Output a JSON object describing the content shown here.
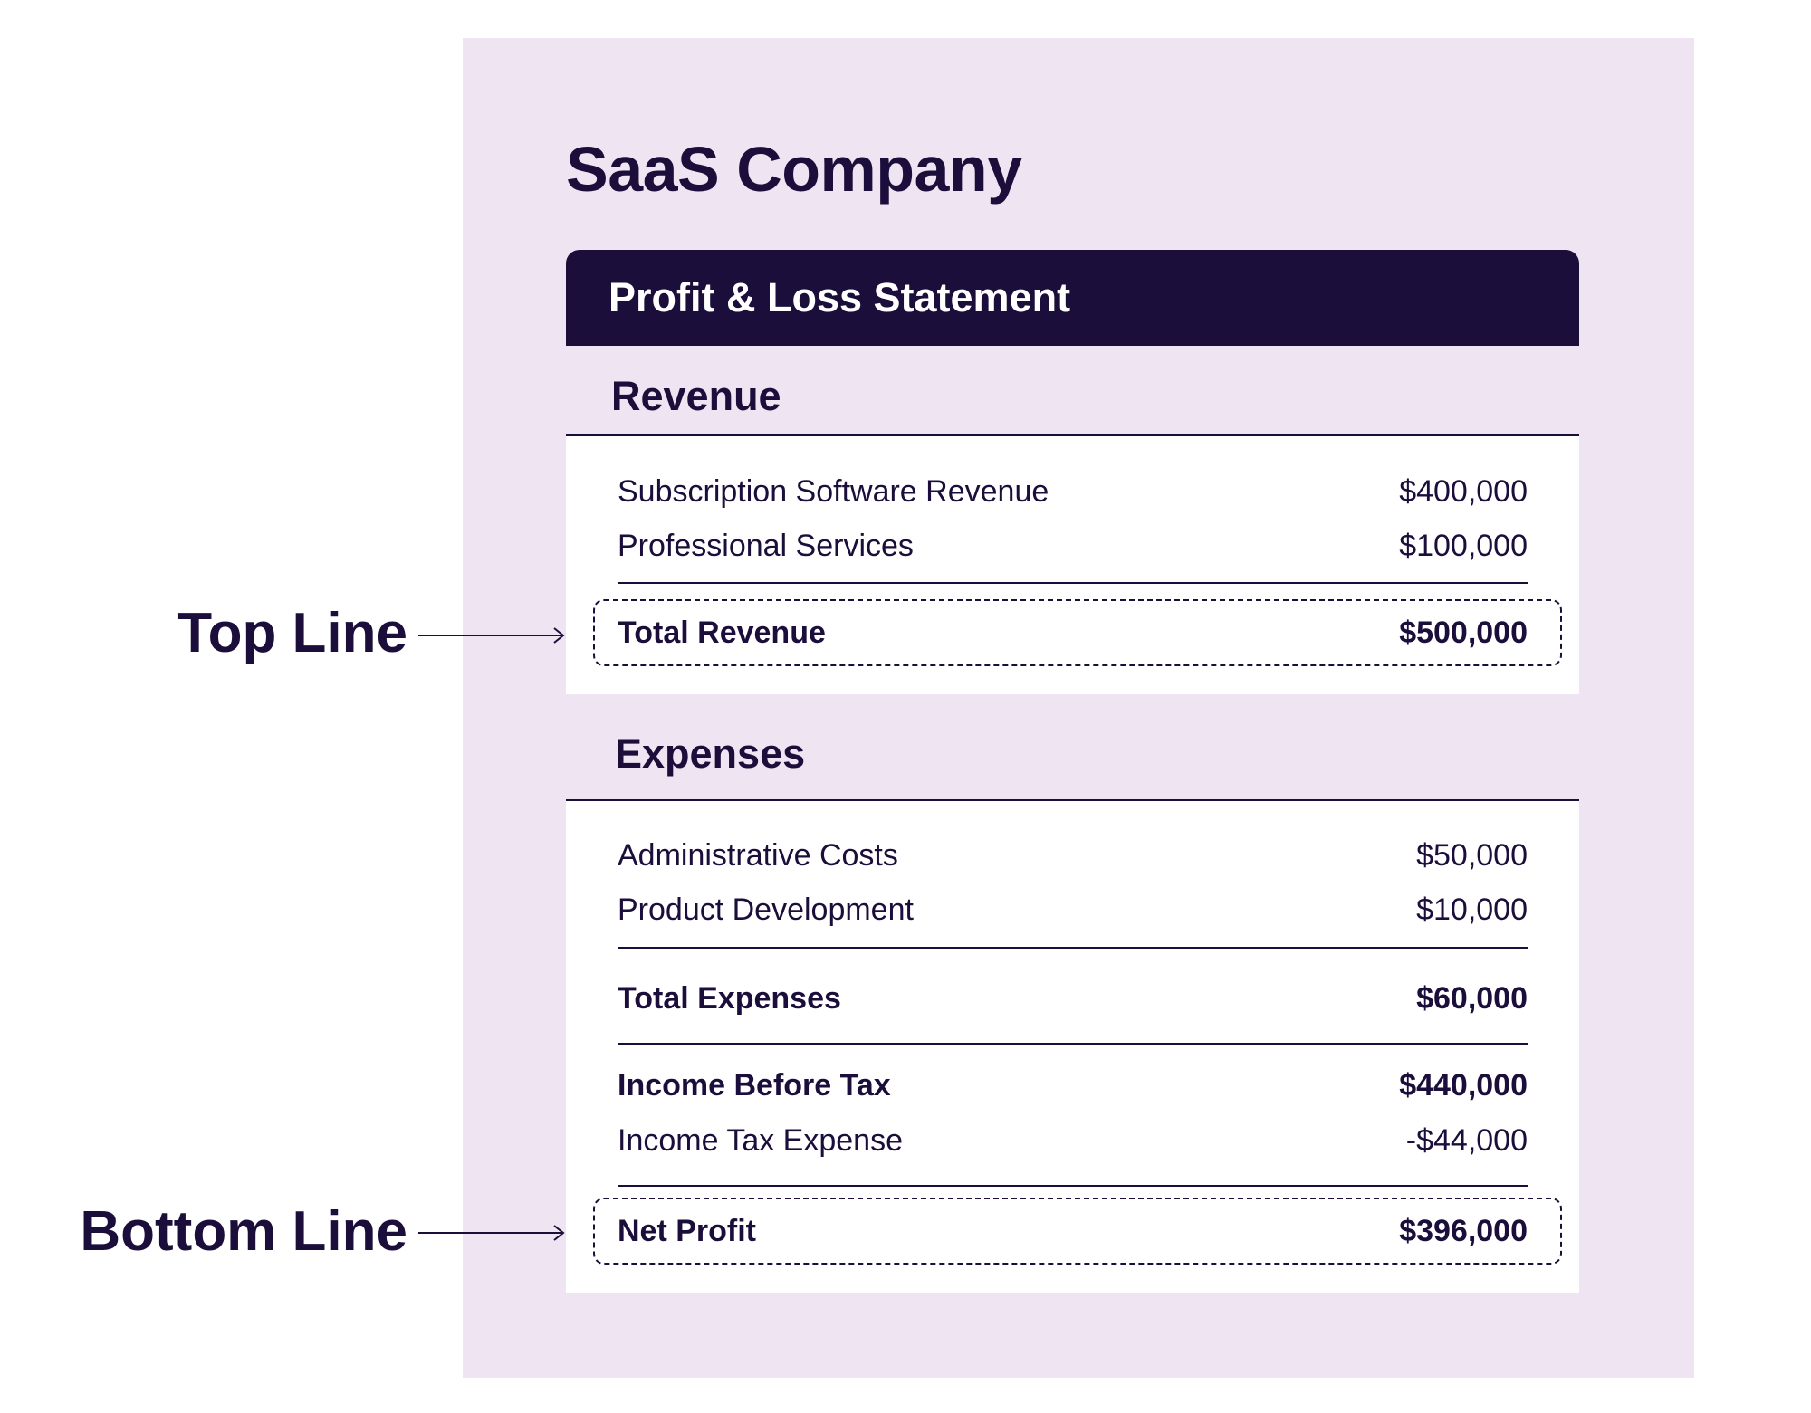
{
  "company": "SaaS Company",
  "statement_title": "Profit & Loss Statement",
  "revenue": {
    "title": "Revenue",
    "items": [
      {
        "label": "Subscription Software Revenue",
        "value": "$400,000"
      },
      {
        "label": "Professional Services",
        "value": "$100,000"
      }
    ],
    "total": {
      "label": "Total Revenue",
      "value": "$500,000"
    }
  },
  "expenses": {
    "title": "Expenses",
    "items": [
      {
        "label": "Administrative Costs",
        "value": "$50,000"
      },
      {
        "label": "Product Development",
        "value": "$10,000"
      }
    ],
    "total": {
      "label": "Total Expenses",
      "value": "$60,000"
    }
  },
  "income_before_tax": {
    "label": "Income Before Tax",
    "value": "$440,000"
  },
  "income_tax": {
    "label": "Income Tax Expense",
    "value": "-$44,000"
  },
  "net_profit": {
    "label": "Net Profit",
    "value": "$396,000"
  },
  "callouts": {
    "top": "Top Line",
    "bottom": "Bottom Line"
  },
  "colors": {
    "navy": "#1b0e3b",
    "panel": "#efe4f1",
    "card": "#ffffff"
  }
}
